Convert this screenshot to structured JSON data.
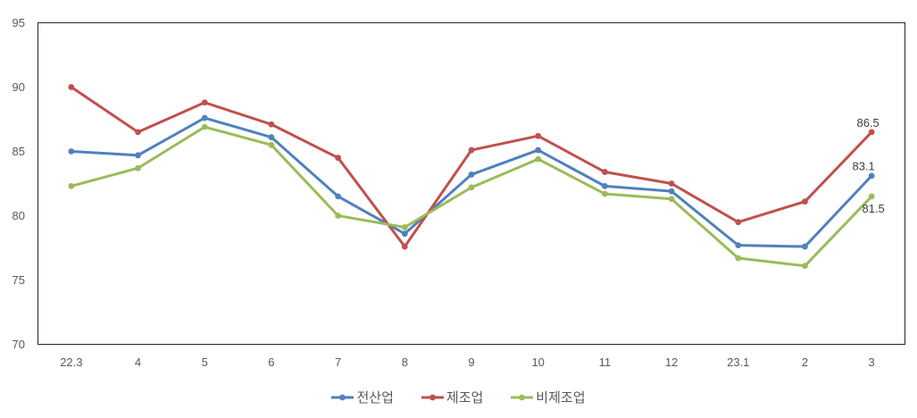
{
  "chart_data": {
    "type": "line",
    "title": "",
    "xlabel": "",
    "ylabel": "",
    "ylim": [
      70,
      95
    ],
    "yticks": [
      70,
      75,
      80,
      85,
      90,
      95
    ],
    "grid": false,
    "legend_position": "bottom-center",
    "categories": [
      "22.3",
      "4",
      "5",
      "6",
      "7",
      "8",
      "9",
      "10",
      "11",
      "12",
      "23.1",
      "2",
      "3"
    ],
    "series": [
      {
        "name": "전산업",
        "key": "all-industries",
        "color": "#4F81BD",
        "values": [
          85.0,
          84.7,
          87.6,
          86.1,
          81.5,
          78.6,
          83.2,
          85.1,
          82.3,
          81.9,
          77.7,
          77.6,
          83.1
        ]
      },
      {
        "name": "제조업",
        "key": "manufacturing",
        "color": "#C0504D",
        "values": [
          90.0,
          86.5,
          88.8,
          87.1,
          84.5,
          77.6,
          85.1,
          86.2,
          83.4,
          82.5,
          79.5,
          81.1,
          86.5
        ]
      },
      {
        "name": "비제조업",
        "key": "non-manufacturing",
        "color": "#9BBB59",
        "values": [
          82.3,
          83.7,
          86.9,
          85.5,
          80.0,
          79.1,
          82.2,
          84.4,
          81.7,
          81.3,
          76.7,
          76.1,
          81.5
        ]
      }
    ],
    "end_labels": [
      {
        "series": "제조업",
        "text": "86.5"
      },
      {
        "series": "전산업",
        "text": "83.1"
      },
      {
        "series": "비제조업",
        "text": "81.5"
      }
    ],
    "colors": {
      "axis_line": "#262626",
      "tick_text": "#595959",
      "data_label_text": "#404040"
    }
  }
}
